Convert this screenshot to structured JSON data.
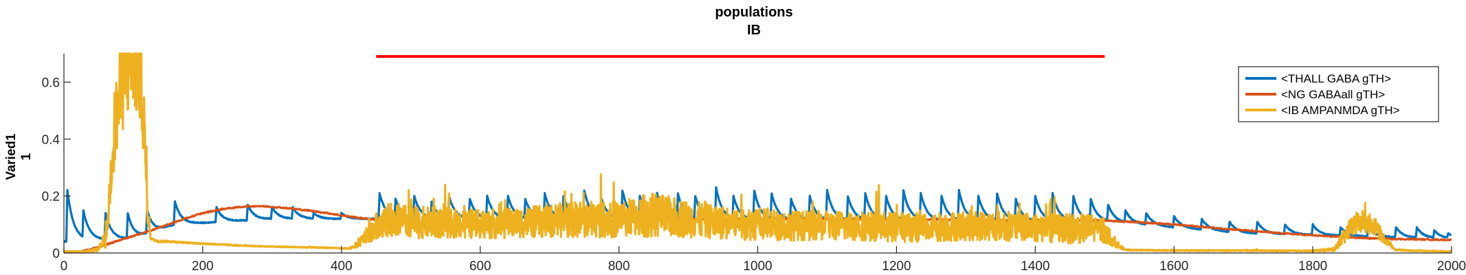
{
  "chart_data": {
    "type": "line",
    "title": "populations",
    "subtitle": "IB",
    "ylabel_line1": "Varied1",
    "ylabel_line2": "1",
    "xlim": [
      0,
      2000
    ],
    "ylim": [
      0,
      0.7
    ],
    "xticks": [
      0,
      200,
      400,
      600,
      800,
      1000,
      1200,
      1400,
      1600,
      1800,
      2000
    ],
    "yticks": [
      0,
      0.2,
      0.4,
      0.6
    ],
    "ytick_labels": [
      "0",
      "0.2",
      "0.4",
      "0.6"
    ],
    "grid": false,
    "legend_position": "top-right",
    "stimulus_bar": {
      "x_start": 450,
      "x_end": 1500,
      "y": 0.69,
      "color": "#ff0000"
    },
    "series": [
      {
        "name": "<THALL GABA gTH>",
        "color": "#0072bd",
        "model": "decaying-pulses",
        "baseline_segments": [
          [
            0,
            0.04
          ],
          [
            100,
            0.05
          ],
          [
            160,
            0.1
          ],
          [
            300,
            0.12
          ],
          [
            450,
            0.12
          ],
          [
            1500,
            0.11
          ],
          [
            1700,
            0.07
          ],
          [
            2000,
            0.05
          ]
        ],
        "pulse_times": [
          5,
          28,
          60,
          92,
          120,
          160,
          220,
          265,
          300,
          330,
          360,
          400,
          455,
          478,
          505,
          530,
          555,
          585,
          610,
          640,
          665,
          693,
          720,
          750,
          775,
          805,
          830,
          855,
          885,
          910,
          940,
          965,
          995,
          1020,
          1048,
          1075,
          1100,
          1130,
          1155,
          1185,
          1210,
          1235,
          1265,
          1290,
          1318,
          1345,
          1372,
          1400,
          1425,
          1455,
          1480,
          1505,
          1530,
          1560,
          1600,
          1640,
          1680,
          1720,
          1760,
          1800,
          1840,
          1880,
          1920,
          1950,
          1975,
          1995
        ],
        "pulse_peaks": [
          0.22,
          0.15,
          0.14,
          0.14,
          0.15,
          0.18,
          0.16,
          0.17,
          0.16,
          0.16,
          0.14,
          0.14,
          0.21,
          0.19,
          0.2,
          0.18,
          0.2,
          0.19,
          0.2,
          0.2,
          0.19,
          0.21,
          0.2,
          0.22,
          0.19,
          0.22,
          0.2,
          0.21,
          0.21,
          0.2,
          0.23,
          0.2,
          0.22,
          0.21,
          0.19,
          0.2,
          0.22,
          0.2,
          0.21,
          0.2,
          0.22,
          0.21,
          0.2,
          0.22,
          0.2,
          0.21,
          0.19,
          0.2,
          0.21,
          0.2,
          0.19,
          0.17,
          0.15,
          0.14,
          0.13,
          0.12,
          0.11,
          0.11,
          0.1,
          0.1,
          0.09,
          0.09,
          0.09,
          0.09,
          0.08,
          0.07
        ],
        "decay_tau": 9
      },
      {
        "name": "<NG GABAall gTH>",
        "color": "#d95319",
        "model": "smooth",
        "x": [
          0,
          20,
          50,
          80,
          100,
          120,
          150,
          180,
          200,
          230,
          260,
          280,
          300,
          320,
          350,
          380,
          400,
          430,
          460,
          500,
          550,
          600,
          650,
          700,
          750,
          800,
          850,
          900,
          950,
          1000,
          1050,
          1100,
          1150,
          1200,
          1250,
          1300,
          1350,
          1400,
          1450,
          1500,
          1550,
          1600,
          1650,
          1700,
          1750,
          1800,
          1850,
          1900,
          1950,
          2000
        ],
        "y": [
          0.002,
          0.003,
          0.02,
          0.045,
          0.06,
          0.075,
          0.1,
          0.125,
          0.14,
          0.155,
          0.163,
          0.165,
          0.162,
          0.158,
          0.15,
          0.14,
          0.132,
          0.122,
          0.114,
          0.106,
          0.102,
          0.101,
          0.103,
          0.107,
          0.11,
          0.114,
          0.117,
          0.119,
          0.12,
          0.12,
          0.12,
          0.12,
          0.119,
          0.118,
          0.117,
          0.116,
          0.115,
          0.115,
          0.115,
          0.114,
          0.108,
          0.1,
          0.09,
          0.08,
          0.07,
          0.062,
          0.055,
          0.05,
          0.048,
          0.046
        ]
      },
      {
        "name": "<IB AMPANMDA gTH>",
        "color": "#edb120",
        "model": "noisy",
        "x": [
          0,
          30,
          50,
          60,
          65,
          70,
          80,
          90,
          100,
          112,
          120,
          125,
          135,
          150,
          180,
          220,
          260,
          300,
          340,
          380,
          410,
          420,
          430,
          440,
          450,
          460,
          470,
          480,
          490,
          500,
          550,
          600,
          650,
          700,
          750,
          800,
          850,
          900,
          950,
          1000,
          1050,
          1100,
          1150,
          1200,
          1250,
          1300,
          1350,
          1400,
          1450,
          1480,
          1500,
          1515,
          1530,
          1600,
          1700,
          1750,
          1800,
          1830,
          1845,
          1860,
          1875,
          1890,
          1905,
          1920,
          1950,
          2000
        ],
        "y": [
          0.005,
          0.005,
          0.01,
          0.04,
          0.15,
          0.35,
          0.5,
          0.6,
          0.62,
          0.58,
          0.15,
          0.05,
          0.04,
          0.04,
          0.035,
          0.03,
          0.025,
          0.022,
          0.02,
          0.018,
          0.015,
          0.02,
          0.04,
          0.06,
          0.08,
          0.09,
          0.1,
          0.1,
          0.095,
          0.09,
          0.09,
          0.085,
          0.09,
          0.095,
          0.1,
          0.1,
          0.11,
          0.1,
          0.09,
          0.085,
          0.08,
          0.08,
          0.08,
          0.075,
          0.075,
          0.08,
          0.08,
          0.075,
          0.07,
          0.07,
          0.065,
          0.03,
          0.01,
          0.008,
          0.008,
          0.007,
          0.007,
          0.01,
          0.05,
          0.09,
          0.1,
          0.08,
          0.04,
          0.01,
          0.007,
          0.005
        ],
        "noise_amp": [
          0.002,
          0.002,
          0.01,
          0.05,
          0.1,
          0.2,
          0.25,
          0.3,
          0.3,
          0.3,
          0.1,
          0.005,
          0.005,
          0.005,
          0.003,
          0.003,
          0.002,
          0.002,
          0.002,
          0.002,
          0.002,
          0.01,
          0.03,
          0.05,
          0.07,
          0.08,
          0.09,
          0.09,
          0.09,
          0.09,
          0.08,
          0.08,
          0.08,
          0.09,
          0.1,
          0.1,
          0.12,
          0.1,
          0.09,
          0.09,
          0.08,
          0.08,
          0.08,
          0.08,
          0.08,
          0.08,
          0.08,
          0.08,
          0.08,
          0.08,
          0.07,
          0.02,
          0.003,
          0.003,
          0.003,
          0.003,
          0.003,
          0.01,
          0.04,
          0.06,
          0.06,
          0.05,
          0.02,
          0.005,
          0.002,
          0.002
        ]
      }
    ]
  }
}
